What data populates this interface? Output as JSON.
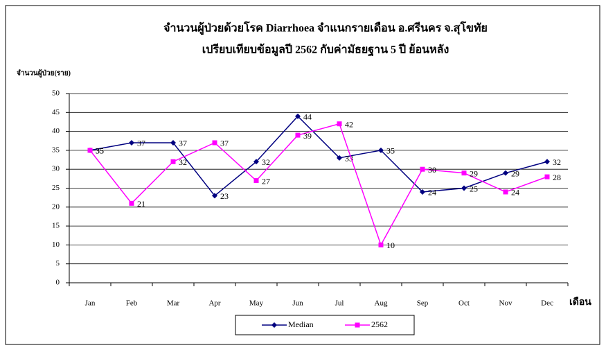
{
  "chart_data": {
    "type": "line",
    "title": "จำนวนผู้ป่วยด้วยโรค Diarrhoea จำแนกรายเดือน   อ.ศรีนคร จ.สุโขทัย",
    "subtitle": "เปรียบเทียบข้อมูลปี 2562 กับค่ามัธยฐาน 5 ปี ย้อนหลัง",
    "y_label": "จำนวนผู้ป่วย(ราย)",
    "x_label": "เดือน",
    "categories": [
      "Jan",
      "Feb",
      "Mar",
      "Apr",
      "May",
      "Jun",
      "Jul",
      "Aug",
      "Sep",
      "Oct",
      "Nov",
      "Dec"
    ],
    "series": [
      {
        "name": "Median",
        "color": "#000080",
        "marker": "diamond",
        "values": [
          35,
          37,
          37,
          23,
          32,
          44,
          33,
          35,
          24,
          25,
          29,
          32
        ]
      },
      {
        "name": "2562",
        "color": "#ff00ff",
        "marker": "square",
        "values": [
          35,
          21,
          32,
          37,
          27,
          39,
          42,
          10,
          30,
          29,
          24,
          28
        ]
      }
    ],
    "ylim": [
      0,
      50
    ],
    "yticks": [
      0,
      5,
      10,
      15,
      20,
      25,
      30,
      35,
      40,
      45,
      50
    ],
    "grid": true,
    "legend": "bottom"
  }
}
